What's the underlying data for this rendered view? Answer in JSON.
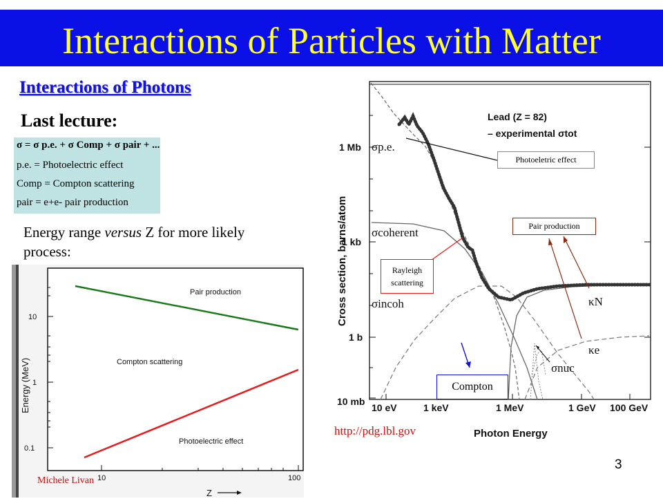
{
  "title": "Interactions of Particles with Matter",
  "subtitle": "Interactions of Photons",
  "last_lecture": "Last lecture:",
  "formula": {
    "line1": "σ = σ p.e. + σ Comp + σ pair + ...",
    "line2": "p.e. = Photoelectric effect",
    "line3": "Comp = Compton scattering",
    "line4": "pair = e+e- pair production"
  },
  "range_text_a": "Energy range ",
  "range_text_em": "versus",
  "range_text_b": " Z for more likely process:",
  "colors": {
    "title_bar": "#0a10e6",
    "title_text": "#ffff33",
    "subtitle": "#1010e0",
    "pair_line": "#1a7a1a",
    "photo_line": "#e81a1a",
    "formula_bg": "#bfe3e3"
  },
  "chart_data": [
    {
      "type": "line",
      "xlabel": "Z",
      "ylabel": "Energy (MeV)",
      "yscale": "log",
      "xscale": "log",
      "y_ticks": [
        "10",
        "1",
        "0.1"
      ],
      "x_ticks": [
        "10",
        "100"
      ],
      "region_labels": [
        "Pair production",
        "Compton scattering",
        "Photoelectric effect"
      ],
      "series": [
        {
          "x": [
            7,
            100
          ],
          "y": [
            25,
            5.5
          ]
        },
        {
          "x": [
            7,
            100
          ],
          "y": [
            0.045,
            0.9
          ]
        }
      ]
    },
    {
      "type": "line",
      "xlabel": "Photon Energy",
      "ylabel": "Cross section, barns/atom",
      "x_ticks": [
        "10 eV",
        "1 keV",
        "1 MeV",
        "1 GeV",
        "100 GeV"
      ],
      "y_ticks": [
        "1 Mb",
        "1 kb",
        "1 b",
        "10 mb"
      ],
      "legend_title": "Lead (Z = 82)",
      "legend_entry": "– experimental σtot",
      "curve_labels": [
        "σp.e.",
        "σcoherent",
        "σincoh",
        "κN",
        "κe",
        "σnuc"
      ],
      "annotations": [
        "Photoeletric effect",
        "Pair production",
        "Rayleigh scattering",
        "Compton"
      ]
    }
  ],
  "url": "http://pdg.lbl.gov",
  "credit": "Michele Livan",
  "page_number": "3"
}
